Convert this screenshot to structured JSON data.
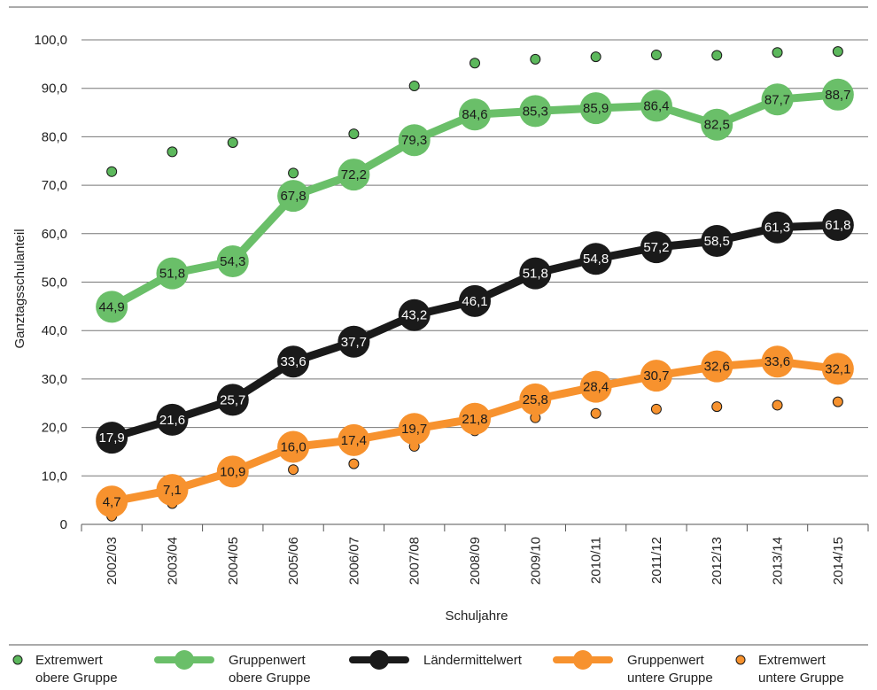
{
  "chart_data": {
    "type": "line",
    "xlabel": "Schuljahre",
    "ylabel": "Ganztagsschulanteil",
    "ylim": [
      0,
      100
    ],
    "yticks": [
      "0",
      "10,0",
      "20,0",
      "30,0",
      "40,0",
      "50,0",
      "60,0",
      "70,0",
      "80,0",
      "90,0",
      "100,0"
    ],
    "categories": [
      "2002/03",
      "2003/04",
      "2004/05",
      "2005/06",
      "2006/07",
      "2007/08",
      "2008/09",
      "2009/10",
      "2010/11",
      "2011/12",
      "2012/13",
      "2013/14",
      "2014/15"
    ],
    "grid": "horizontal",
    "legend_position": "bottom",
    "series": [
      {
        "name": "Extremwert obere Gruppe",
        "kind": "points",
        "color": "#5cb85c",
        "values": [
          72.8,
          76.9,
          78.8,
          72.5,
          80.6,
          90.5,
          95.2,
          96.0,
          96.5,
          96.9,
          96.8,
          97.4,
          97.6
        ]
      },
      {
        "name": "Gruppenwert obere Gruppe",
        "kind": "line",
        "color": "#6abf69",
        "values": [
          44.9,
          51.8,
          54.3,
          67.8,
          72.2,
          79.3,
          84.6,
          85.3,
          85.9,
          86.4,
          82.5,
          87.7,
          88.7
        ],
        "labels": [
          "44,9",
          "51,8",
          "54,3",
          "67,8",
          "72,2",
          "79,3",
          "84,6",
          "85,3",
          "85,9",
          "86,4",
          "82,5",
          "87,7",
          "88,7"
        ]
      },
      {
        "name": "Ländermittelwert",
        "kind": "line",
        "color": "#1a1a1a",
        "values": [
          17.9,
          21.6,
          25.7,
          33.6,
          37.7,
          43.2,
          46.1,
          51.8,
          54.8,
          57.2,
          58.5,
          61.3,
          61.8
        ],
        "labels": [
          "17,9",
          "21,6",
          "25,7",
          "33,6",
          "37,7",
          "43,2",
          "46,1",
          "51,8",
          "54,8",
          "57,2",
          "58,5",
          "61,3",
          "61,8"
        ]
      },
      {
        "name": "Gruppenwert untere Gruppe",
        "kind": "line",
        "color": "#f7922e",
        "values": [
          4.7,
          7.1,
          10.9,
          16.0,
          17.4,
          19.7,
          21.8,
          25.8,
          28.4,
          30.7,
          32.6,
          33.6,
          32.1
        ],
        "labels": [
          "4,7",
          "7,1",
          "10,9",
          "16,0",
          "17,4",
          "19,7",
          "21,8",
          "25,8",
          "28,4",
          "30,7",
          "32,6",
          "33,6",
          "32,1"
        ]
      },
      {
        "name": "Extremwert untere Gruppe",
        "kind": "points",
        "color": "#f7922e",
        "values": [
          1.7,
          4.3,
          9.9,
          11.3,
          12.5,
          16.1,
          19.3,
          22.0,
          22.9,
          23.8,
          24.3,
          24.6,
          25.3
        ]
      }
    ],
    "legend": [
      {
        "line1": "Extremwert",
        "line2": "obere Gruppe",
        "icon": "dot-green-icon"
      },
      {
        "line1": "Gruppenwert",
        "line2": "obere Gruppe",
        "icon": "line-marker-green-icon"
      },
      {
        "line1": "Ländermittelwert",
        "line2": "",
        "icon": "line-marker-black-icon"
      },
      {
        "line1": "Gruppenwert",
        "line2": "untere Gruppe",
        "icon": "line-marker-orange-icon"
      },
      {
        "line1": "Extremwert",
        "line2": "untere Gruppe",
        "icon": "dot-orange-icon"
      }
    ]
  }
}
